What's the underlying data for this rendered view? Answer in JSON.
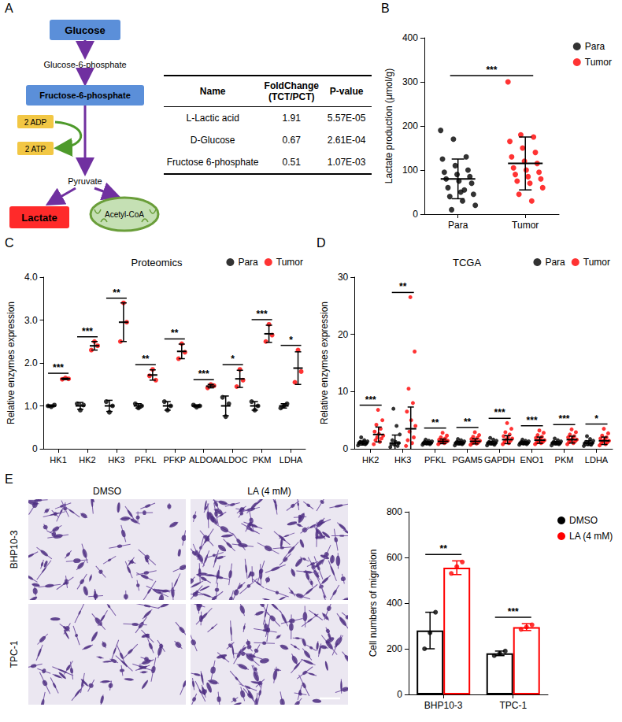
{
  "figure_a": {
    "panel": "A",
    "diagram": {
      "nodes": [
        "Glucose",
        "Glucose-6-phosphate",
        "Fructose-6-phosphate",
        "2 ADP",
        "2 ATP",
        "Pyruvate",
        "Lactate",
        "Acetyl-CoA"
      ]
    },
    "table": {
      "header": [
        "Name",
        "FoldChange (TCT/PCT)",
        "P-value"
      ],
      "rows": [
        [
          "L-Lactic acid",
          "1.91",
          "5.57E-05"
        ],
        [
          "D-Glucose",
          "0.67",
          "2.61E-04"
        ],
        [
          "Fructose 6-phosphate",
          "0.51",
          "1.07E-03"
        ]
      ]
    }
  },
  "chart_data": [
    {
      "panel": "B",
      "type": "scatter",
      "ylabel": "Lactate production (μmol/g)",
      "categories": [
        "Para",
        "Tumor"
      ],
      "ylim": [
        0,
        400
      ],
      "yticks": [
        0,
        100,
        200,
        300,
        400
      ],
      "grid": false,
      "legend": "top-right",
      "significance": [
        "***"
      ],
      "series": [
        {
          "name": "Para",
          "color": "#000000",
          "values": [
            [
              190,
              170,
              130,
              125,
              110,
              100,
              95,
              90,
              85,
              80,
              75,
              70,
              60,
              50,
              45,
              40,
              30,
              20,
              10,
              55
            ],
            null
          ],
          "mean": [
            80,
            null
          ],
          "sd": [
            45,
            null
          ]
        },
        {
          "name": "Tumor",
          "color": "#ff0000",
          "values": [
            null,
            [
              300,
              180,
              175,
              165,
              150,
              140,
              130,
              120,
              115,
              105,
              100,
              95,
              90,
              85,
              80,
              75,
              70,
              60,
              45,
              30
            ]
          ],
          "mean": [
            null,
            115
          ],
          "sd": [
            null,
            60
          ]
        }
      ]
    },
    {
      "panel": "C",
      "type": "scatter",
      "title": "Proteomics",
      "ylabel": "Relative enzymes expression",
      "categories": [
        "HK1",
        "HK2",
        "HK3",
        "PFKL",
        "PFKP",
        "ALDOA",
        "ALDOC",
        "PKM",
        "LDHA"
      ],
      "ylim": [
        0,
        4
      ],
      "yticks": [
        0,
        {
          "value": 1,
          "label": "1.0"
        },
        {
          "value": 2,
          "label": "2.0"
        },
        {
          "value": 3,
          "label": "3.0"
        },
        {
          "value": 4,
          "label": "4.0"
        }
      ],
      "grid": false,
      "legend": "top-right",
      "significance": [
        "***",
        "***",
        "**",
        "**",
        "**",
        "***",
        "*",
        "***",
        "*"
      ],
      "series": [
        {
          "name": "Para",
          "color": "#000000",
          "values": [
            [
              1.0,
              0.98,
              1.02
            ],
            [
              1.05,
              0.9,
              1.02
            ],
            [
              1.1,
              0.85,
              1.0
            ],
            [
              1.05,
              0.95,
              1.0
            ],
            [
              1.1,
              0.9,
              1.0
            ],
            [
              1.02,
              0.97,
              1.0
            ],
            [
              1.2,
              0.75,
              1.05
            ],
            [
              1.1,
              0.9,
              1.0
            ],
            [
              0.95,
              1.0,
              1.05
            ]
          ],
          "mean": [
            1.0,
            1.0,
            1.0,
            1.0,
            1.0,
            1.0,
            1.0,
            1.0,
            1.0
          ],
          "sd": [
            0.02,
            0.08,
            0.13,
            0.05,
            0.1,
            0.025,
            0.23,
            0.1,
            0.05
          ]
        },
        {
          "name": "Tumor",
          "color": "#ff0000",
          "values": [
            [
              1.62,
              1.65,
              1.63
            ],
            [
              2.3,
              2.5,
              2.4
            ],
            [
              2.5,
              3.4,
              2.95
            ],
            [
              1.7,
              1.85,
              1.6
            ],
            [
              2.1,
              2.45,
              2.25
            ],
            [
              1.42,
              1.5,
              1.47
            ],
            [
              1.45,
              1.85,
              1.6
            ],
            [
              2.5,
              2.9,
              2.65
            ],
            [
              1.55,
              2.3,
              1.8
            ]
          ],
          "mean": [
            1.63,
            2.4,
            2.95,
            1.72,
            2.27,
            1.46,
            1.63,
            2.68,
            1.88
          ],
          "sd": [
            0.015,
            0.1,
            0.45,
            0.12,
            0.17,
            0.04,
            0.2,
            0.2,
            0.38
          ]
        }
      ]
    },
    {
      "panel": "D",
      "type": "scatter",
      "title": "TCGA",
      "ylabel": "Relative enzymes expression",
      "categories": [
        "HK2",
        "HK3",
        "PFKL",
        "PGAM5",
        "GAPDH",
        "ENO1",
        "PKM",
        "LDHA"
      ],
      "ylim": [
        0,
        30
      ],
      "yticks": [
        0,
        10,
        20,
        30
      ],
      "grid": false,
      "legend": "top-right",
      "significance": [
        "***",
        "**",
        "**",
        "**",
        "***",
        "***",
        "***",
        "*"
      ],
      "series": [
        {
          "name": "Para",
          "color": "#000000",
          "values": [
            [
              0.6,
              0.8,
              0.9,
              1.0,
              1.0,
              1.1,
              1.2,
              1.3,
              1.5,
              2.0
            ],
            [
              0.3,
              0.5,
              0.7,
              0.8,
              1.0,
              1.2,
              1.5,
              2.5,
              4.0,
              7.0
            ],
            [
              0.7,
              0.8,
              0.9,
              1.0,
              1.0,
              1.1,
              1.2,
              1.3,
              1.4,
              1.6
            ],
            [
              0.6,
              0.8,
              0.9,
              1.0,
              1.0,
              1.1,
              1.2,
              1.3,
              1.5,
              1.7
            ],
            [
              0.6,
              0.7,
              0.9,
              1.0,
              1.0,
              1.1,
              1.2,
              1.4,
              1.6,
              1.9
            ],
            [
              0.7,
              0.8,
              0.9,
              1.0,
              1.0,
              1.1,
              1.2,
              1.3,
              1.4,
              1.6
            ],
            [
              0.6,
              0.8,
              0.9,
              1.0,
              1.0,
              1.1,
              1.2,
              1.3,
              1.5,
              1.8
            ],
            [
              0.5,
              0.7,
              0.8,
              0.9,
              1.0,
              1.1,
              1.2,
              1.4,
              1.7,
              2.2
            ]
          ],
          "mean": [
            1.0,
            1.0,
            1.0,
            1.0,
            1.0,
            1.0,
            1.0,
            1.0
          ],
          "sd": [
            0.35,
            1.4,
            0.25,
            0.3,
            0.3,
            0.25,
            0.3,
            0.4
          ]
        },
        {
          "name": "Tumor",
          "color": "#ff0000",
          "values": [
            [
              0.8,
              1.2,
              1.5,
              1.8,
              2.0,
              2.3,
              2.6,
              3.0,
              3.5,
              4.2,
              5.0,
              6.8
            ],
            [
              0.5,
              1.0,
              1.5,
              2.0,
              3.0,
              4.0,
              5.0,
              6.5,
              8.0,
              10.5,
              17.0,
              26.5
            ],
            [
              0.8,
              1.0,
              1.1,
              1.2,
              1.3,
              1.4,
              1.5,
              1.6,
              1.8,
              2.0,
              2.3,
              2.8
            ],
            [
              0.7,
              0.9,
              1.0,
              1.1,
              1.3,
              1.4,
              1.5,
              1.7,
              1.9,
              2.1,
              2.4,
              2.9
            ],
            [
              0.8,
              1.0,
              1.2,
              1.4,
              1.6,
              1.8,
              2.0,
              2.2,
              2.5,
              2.9,
              3.5,
              4.5
            ],
            [
              0.8,
              1.0,
              1.1,
              1.2,
              1.4,
              1.5,
              1.7,
              1.9,
              2.1,
              2.4,
              2.8,
              3.2
            ],
            [
              0.8,
              1.0,
              1.2,
              1.3,
              1.5,
              1.6,
              1.8,
              2.0,
              2.2,
              2.5,
              2.9,
              3.4
            ],
            [
              0.6,
              0.8,
              1.0,
              1.1,
              1.3,
              1.4,
              1.6,
              1.8,
              2.0,
              2.3,
              2.7,
              3.5
            ]
          ],
          "mean": [
            2.5,
            3.5,
            1.3,
            1.3,
            1.6,
            1.5,
            1.6,
            1.4
          ],
          "sd": [
            1.3,
            3.8,
            0.4,
            0.45,
            0.7,
            0.55,
            0.6,
            0.65
          ]
        }
      ]
    },
    {
      "type": "bar",
      "ylabel": "Cell numbers of migration",
      "categories": [
        "BHP10-3",
        "TPC-1"
      ],
      "ylim": [
        0,
        800
      ],
      "yticks": [
        0,
        200,
        400,
        600,
        800
      ],
      "grid": false,
      "legend": "top-right",
      "significance": [
        "**",
        "***"
      ],
      "series": [
        {
          "name": "DMSO",
          "color": "#000000",
          "values": [
            280,
            180
          ],
          "sd": [
            80,
            10
          ],
          "points": [
            [
              200,
              270,
              360
            ],
            [
              170,
              180,
              190
            ]
          ]
        },
        {
          "name": "LA (4 mM)",
          "color": "#ff0000",
          "values": [
            555,
            295
          ],
          "sd": [
            30,
            15
          ],
          "points": [
            [
              530,
              560,
              580
            ],
            [
              285,
              295,
              305
            ]
          ]
        }
      ]
    }
  ],
  "micrographs": {
    "panel": "E",
    "columns": [
      "DMSO",
      "LA (4 mM)"
    ],
    "rows": [
      "BHP10-3",
      "TPC-1"
    ]
  }
}
